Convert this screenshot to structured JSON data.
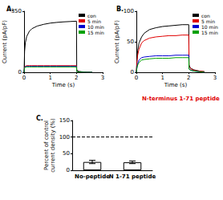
{
  "chart_data": [
    {
      "type": "line",
      "title": "A.",
      "x": [
        0,
        0.02,
        0.05,
        0.1,
        0.2,
        0.3,
        0.5,
        0.75,
        1,
        1.25,
        1.5,
        1.75,
        2,
        2.01,
        2.05,
        2.1,
        2.2,
        2.4,
        2.6
      ],
      "series": [
        {
          "name": "con",
          "color": "#000000",
          "values": [
            0,
            120,
            170,
            205,
            235,
            250,
            265,
            275,
            282,
            286,
            289,
            291,
            293,
            15,
            8,
            5,
            3,
            1,
            0
          ]
        },
        {
          "name": "5 min",
          "color": "#e00000",
          "values": [
            0,
            30,
            35,
            38,
            38,
            38,
            38,
            38,
            38,
            38,
            38,
            38,
            38,
            5,
            3,
            2,
            1,
            0,
            0
          ]
        },
        {
          "name": "10 min",
          "color": "#0000d0",
          "values": [
            0,
            28,
            32,
            34,
            34,
            34,
            34,
            34,
            34,
            34,
            34,
            34,
            34,
            4,
            3,
            2,
            1,
            0,
            0
          ]
        },
        {
          "name": "15 min",
          "color": "#00a000",
          "values": [
            0,
            25,
            29,
            31,
            31,
            31,
            31,
            31,
            31,
            31,
            31,
            31,
            31,
            4,
            2,
            2,
            1,
            0,
            0
          ]
        }
      ],
      "xlim": [
        0,
        3
      ],
      "xticks": [
        0,
        1,
        2,
        3
      ],
      "ylim": [
        0,
        350
      ],
      "yticks": [
        0,
        350
      ],
      "x_label": "Time (s)",
      "y_label": "Current (pA/pF)",
      "legend": "upper right",
      "grid": false
    },
    {
      "type": "line",
      "title": "B.",
      "subtitle": "N-terminus 1-71 peptide",
      "x": [
        0,
        0.02,
        0.05,
        0.1,
        0.2,
        0.3,
        0.5,
        0.75,
        1,
        1.25,
        1.5,
        1.75,
        2,
        2.01,
        2.05,
        2.1,
        2.2,
        2.4,
        2.6
      ],
      "series": [
        {
          "name": "con",
          "color": "#000000",
          "values": [
            0,
            20,
            35,
            48,
            58,
            64,
            70,
            73,
            75,
            76,
            77,
            78,
            78,
            12,
            8,
            6,
            4,
            2,
            1
          ]
        },
        {
          "name": "5 min",
          "color": "#e00000",
          "values": [
            0,
            15,
            28,
            38,
            48,
            52,
            56,
            58,
            59,
            60,
            60,
            61,
            61,
            10,
            7,
            5,
            3,
            2,
            1
          ]
        },
        {
          "name": "10 min",
          "color": "#0000d0",
          "values": [
            0,
            8,
            14,
            20,
            24,
            25,
            26,
            27,
            27,
            27,
            28,
            28,
            28,
            6,
            4,
            3,
            2,
            1,
            0
          ]
        },
        {
          "name": "15 min",
          "color": "#00a000",
          "values": [
            0,
            6,
            12,
            16,
            20,
            21,
            22,
            23,
            23,
            23,
            24,
            24,
            24,
            5,
            4,
            3,
            2,
            1,
            0
          ]
        }
      ],
      "xlim": [
        0,
        3
      ],
      "xticks": [
        0,
        1,
        2,
        3
      ],
      "ylim": [
        0,
        100
      ],
      "yticks": [
        0,
        50,
        100
      ],
      "x_label": "Time (s)",
      "y_label": "Current (pA/pF)",
      "legend": "upper right",
      "grid": false
    },
    {
      "type": "bar",
      "title": "C.",
      "categories": [
        "No-peptide",
        "N 1-71 peptide"
      ],
      "values": [
        25,
        24
      ],
      "errors": [
        5,
        4
      ],
      "ref_line": 100,
      "color": "#ffffff",
      "ylim": [
        0,
        150
      ],
      "yticks": [
        0,
        50,
        100,
        150
      ],
      "y_label": "Percent of control\ncurrent density (%)",
      "grid": false
    }
  ]
}
